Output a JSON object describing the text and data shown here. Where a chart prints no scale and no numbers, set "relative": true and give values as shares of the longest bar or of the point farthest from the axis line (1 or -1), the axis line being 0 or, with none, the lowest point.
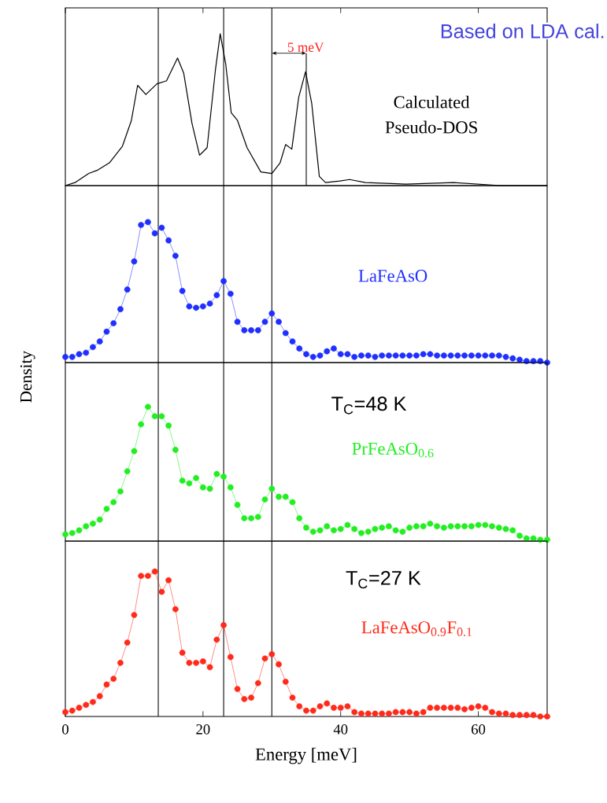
{
  "chart_data": [
    {
      "type": "line",
      "relative": true,
      "xlim": [
        0,
        70
      ],
      "xticks": [
        0,
        20,
        40,
        60
      ],
      "tick_labels": false,
      "series": [
        {
          "name": "Calculated Pseudo-DOS",
          "color": "#000000",
          "x": [
            0,
            1.4,
            3.4,
            4.6,
            6.4,
            8.3,
            9.6,
            10.5,
            11.7,
            13.3,
            14.7,
            16.3,
            17.2,
            18.4,
            19.5,
            20.6,
            21.8,
            22.5,
            23.3,
            24.1,
            25.0,
            26.4,
            28.4,
            30.0,
            31.2,
            32.0,
            32.9,
            33.9,
            34.9,
            35.8,
            36.9,
            37.8,
            39.9,
            41.3,
            43.6,
            49.5,
            56.4,
            63.3,
            70
          ],
          "values": [
            0,
            0.02,
            0.08,
            0.1,
            0.15,
            0.26,
            0.43,
            0.66,
            0.6,
            0.67,
            0.69,
            0.84,
            0.74,
            0.41,
            0.2,
            0.25,
            0.76,
            1.0,
            0.8,
            0.48,
            0.43,
            0.25,
            0.09,
            0.08,
            0.15,
            0.27,
            0.24,
            0.58,
            0.75,
            0.54,
            0.06,
            0.02,
            0.03,
            0.04,
            0.02,
            0.01,
            0.02,
            0.0,
            0
          ]
        }
      ],
      "ref_lines": [
        {
          "axis": "x",
          "value": 13.5
        },
        {
          "axis": "x",
          "value": 23
        },
        {
          "axis": "x",
          "value": 30
        },
        {
          "axis": "x",
          "value": 35
        }
      ],
      "annotations": [
        "Based on LDA cal.",
        "5 meV"
      ]
    },
    {
      "type": "line",
      "relative": true,
      "xlim": [
        0,
        70
      ],
      "tick_labels": false,
      "marker": "circle",
      "x": [
        0,
        1,
        2,
        3,
        4,
        5,
        6,
        7,
        8,
        9,
        10,
        11,
        12,
        13,
        14,
        15,
        16,
        17,
        18,
        19,
        20,
        21,
        22,
        23,
        24,
        25,
        26,
        27,
        28,
        29,
        30,
        31,
        32,
        33,
        34,
        35,
        36,
        37,
        38,
        39,
        40,
        41,
        42,
        43,
        44,
        45,
        46,
        47,
        48,
        49,
        50,
        51,
        52,
        53,
        54,
        55,
        56,
        57,
        58,
        59,
        60,
        61,
        62,
        63,
        64,
        65,
        66,
        67,
        68,
        69,
        70
      ],
      "series": [
        {
          "name": "LaFeAsO",
          "color": "#1f2fff",
          "values": [
            0.04,
            0.04,
            0.06,
            0.07,
            0.11,
            0.15,
            0.22,
            0.28,
            0.38,
            0.52,
            0.72,
            0.98,
            1.0,
            0.92,
            0.96,
            0.87,
            0.76,
            0.51,
            0.4,
            0.39,
            0.4,
            0.42,
            0.48,
            0.58,
            0.49,
            0.29,
            0.23,
            0.23,
            0.23,
            0.29,
            0.35,
            0.29,
            0.21,
            0.15,
            0.1,
            0.06,
            0.04,
            0.05,
            0.08,
            0.1,
            0.06,
            0.06,
            0.04,
            0.05,
            0.05,
            0.04,
            0.05,
            0.05,
            0.05,
            0.05,
            0.05,
            0.05,
            0.06,
            0.06,
            0.05,
            0.05,
            0.05,
            0.05,
            0.05,
            0.05,
            0.05,
            0.05,
            0.05,
            0.05,
            0.04,
            0.03,
            0.02,
            0.01,
            0.01,
            0.01,
            0.0
          ]
        }
      ],
      "ref_lines": [
        {
          "axis": "x",
          "value": 13.5
        },
        {
          "axis": "x",
          "value": 23
        },
        {
          "axis": "x",
          "value": 30
        }
      ]
    },
    {
      "type": "line",
      "relative": true,
      "xlim": [
        0,
        70
      ],
      "tick_labels": false,
      "marker": "circle",
      "ylabel": "Density",
      "x": [
        0,
        1,
        2,
        3,
        4,
        5,
        6,
        7,
        8,
        9,
        10,
        11,
        12,
        13,
        14,
        15,
        16,
        17,
        18,
        19,
        20,
        21,
        22,
        23,
        24,
        25,
        26,
        27,
        28,
        29,
        30,
        31,
        32,
        33,
        34,
        35,
        36,
        37,
        38,
        39,
        40,
        41,
        42,
        43,
        44,
        45,
        46,
        47,
        48,
        49,
        50,
        51,
        52,
        53,
        54,
        55,
        56,
        57,
        58,
        59,
        60,
        61,
        62,
        63,
        64,
        65,
        66,
        67,
        68,
        69,
        70
      ],
      "series": [
        {
          "name": "PrFeAsO$_{0.6}$",
          "color": "#22ee22",
          "values": [
            0.05,
            0.06,
            0.08,
            0.11,
            0.13,
            0.16,
            0.24,
            0.29,
            0.37,
            0.52,
            0.67,
            0.87,
            1.0,
            0.93,
            0.93,
            0.86,
            0.68,
            0.45,
            0.43,
            0.47,
            0.4,
            0.39,
            0.5,
            0.48,
            0.4,
            0.27,
            0.17,
            0.17,
            0.18,
            0.31,
            0.39,
            0.33,
            0.33,
            0.29,
            0.17,
            0.1,
            0.07,
            0.08,
            0.11,
            0.08,
            0.09,
            0.12,
            0.09,
            0.06,
            0.07,
            0.09,
            0.1,
            0.11,
            0.08,
            0.07,
            0.1,
            0.11,
            0.11,
            0.13,
            0.11,
            0.1,
            0.11,
            0.11,
            0.11,
            0.11,
            0.12,
            0.12,
            0.11,
            0.1,
            0.09,
            0.08,
            0.04,
            0.02,
            0.02,
            0.01,
            0.01
          ]
        }
      ],
      "ref_lines": [
        {
          "axis": "x",
          "value": 13.5
        },
        {
          "axis": "x",
          "value": 23
        },
        {
          "axis": "x",
          "value": 30
        }
      ],
      "annotations": [
        "T$_{C}$=48 K"
      ]
    },
    {
      "type": "line",
      "relative": true,
      "xlim": [
        0,
        70
      ],
      "xticks": [
        0,
        20,
        40,
        60
      ],
      "tick_labels": "x",
      "marker": "circle",
      "xlabel": "Energy  [meV]",
      "x": [
        0,
        1,
        2,
        3,
        4,
        5,
        6,
        7,
        8,
        9,
        10,
        11,
        12,
        13,
        14,
        15,
        16,
        17,
        18,
        19,
        20,
        21,
        22,
        23,
        24,
        25,
        26,
        27,
        28,
        29,
        30,
        31,
        32,
        33,
        34,
        35,
        36,
        37,
        38,
        39,
        40,
        41,
        42,
        43,
        44,
        45,
        46,
        47,
        48,
        49,
        50,
        51,
        52,
        53,
        54,
        55,
        56,
        57,
        58,
        59,
        60,
        61,
        62,
        63,
        64,
        65,
        66,
        67,
        68,
        69,
        70
      ],
      "series": [
        {
          "name": "LaFeAsO$_{0.9}$F$_{0.1}$",
          "color": "#ff2a1a",
          "values": [
            0.03,
            0.04,
            0.06,
            0.08,
            0.1,
            0.14,
            0.22,
            0.26,
            0.37,
            0.51,
            0.7,
            0.97,
            0.97,
            1.0,
            0.86,
            0.94,
            0.74,
            0.44,
            0.37,
            0.37,
            0.38,
            0.34,
            0.53,
            0.63,
            0.41,
            0.19,
            0.12,
            0.13,
            0.23,
            0.4,
            0.43,
            0.36,
            0.24,
            0.13,
            0.07,
            0.04,
            0.04,
            0.07,
            0.09,
            0.06,
            0.06,
            0.07,
            0.03,
            0.02,
            0.02,
            0.02,
            0.02,
            0.02,
            0.03,
            0.03,
            0.03,
            0.02,
            0.03,
            0.06,
            0.06,
            0.06,
            0.06,
            0.06,
            0.05,
            0.06,
            0.07,
            0.06,
            0.03,
            0.02,
            0.02,
            0.01,
            0.01,
            0.01,
            0.01,
            0.0,
            0.0
          ]
        }
      ],
      "ref_lines": [
        {
          "axis": "x",
          "value": 13.5
        },
        {
          "axis": "x",
          "value": 23
        },
        {
          "axis": "x",
          "value": 30
        }
      ],
      "annotations": [
        "T$_{C}$=27 K"
      ]
    }
  ]
}
